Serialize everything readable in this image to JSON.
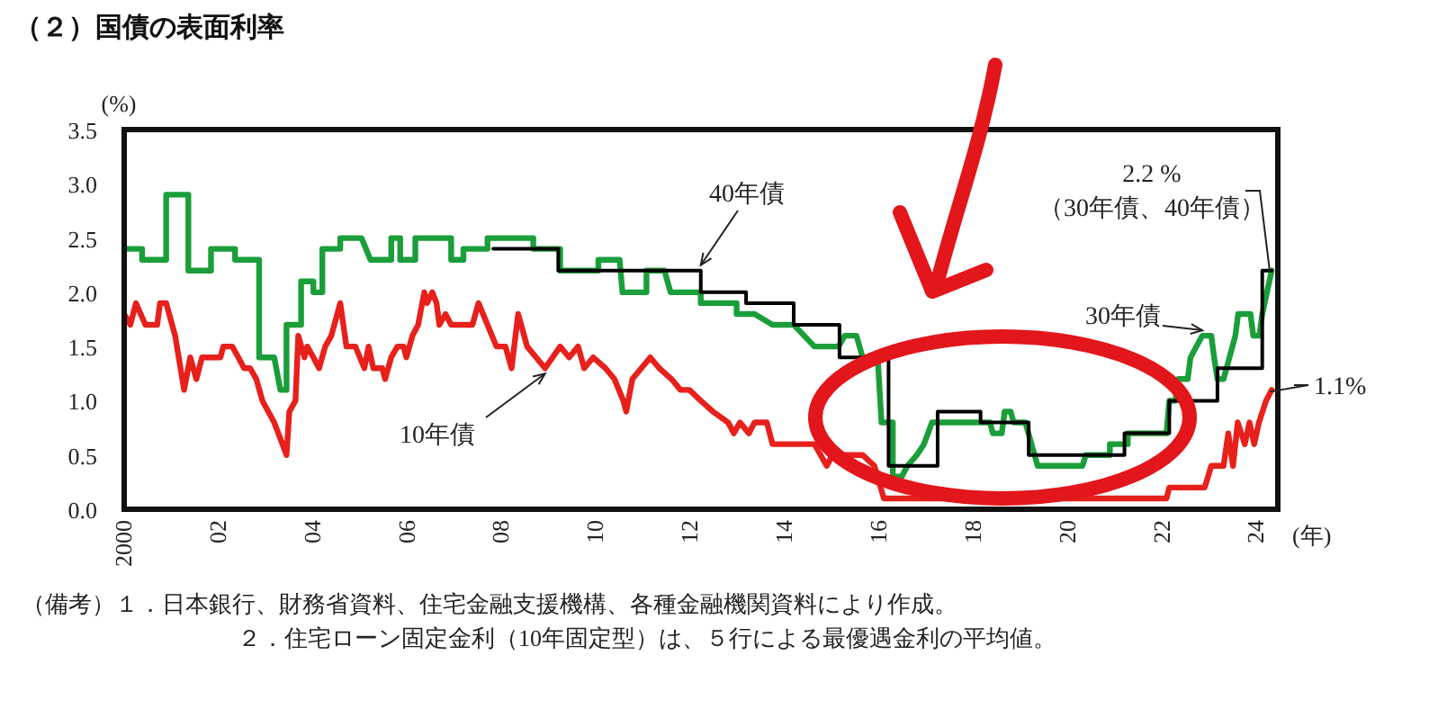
{
  "chart_data": {
    "type": "line",
    "title": "（２）国債の表面利率",
    "ylabel": "(%)",
    "xlabel": "(年)",
    "xlim": [
      2000,
      2024.45
    ],
    "ylim": [
      0,
      3.5
    ],
    "xticks": [
      {
        "value": 2000,
        "label": "2000"
      },
      {
        "value": 2002,
        "label": "02"
      },
      {
        "value": 2004,
        "label": "04"
      },
      {
        "value": 2006,
        "label": "06"
      },
      {
        "value": 2008,
        "label": "08"
      },
      {
        "value": 2010,
        "label": "10"
      },
      {
        "value": 2012,
        "label": "12"
      },
      {
        "value": 2014,
        "label": "14"
      },
      {
        "value": 2016,
        "label": "16"
      },
      {
        "value": 2018,
        "label": "18"
      },
      {
        "value": 2020,
        "label": "20"
      },
      {
        "value": 2022,
        "label": "22"
      },
      {
        "value": 2024,
        "label": "24"
      }
    ],
    "yticks": [
      {
        "value": 0,
        "label": "0.0"
      },
      {
        "value": 0.5,
        "label": "0.5"
      },
      {
        "value": 1,
        "label": "1.0"
      },
      {
        "value": 1.5,
        "label": "1.5"
      },
      {
        "value": 2,
        "label": "2.0"
      },
      {
        "value": 2.5,
        "label": "2.5"
      },
      {
        "value": 3,
        "label": "3.0"
      },
      {
        "value": 3.5,
        "label": "3.5"
      }
    ],
    "grid": false,
    "marker": "none",
    "line_style": "solid",
    "series": [
      {
        "name": "10年債",
        "color": "#e8201c",
        "x": [
          2000,
          2000.13,
          2000.25,
          2000.45,
          2000.7,
          2000.76,
          2000.89,
          2001.08,
          2001.27,
          2001.4,
          2001.53,
          2001.65,
          2002.04,
          2002.1,
          2002.29,
          2002.42,
          2002.54,
          2002.67,
          2002.8,
          2002.93,
          2003.18,
          2003.44,
          2003.5,
          2003.63,
          2003.69,
          2003.82,
          2003.88,
          2004.01,
          2004.13,
          2004.26,
          2004.39,
          2004.58,
          2004.71,
          2004.9,
          2005.09,
          2005.18,
          2005.28,
          2005.47,
          2005.53,
          2005.66,
          2005.79,
          2005.92,
          2005.98,
          2006.11,
          2006.23,
          2006.36,
          2006.42,
          2006.53,
          2006.62,
          2006.68,
          2006.81,
          2006.93,
          2007.38,
          2007.51,
          2007.7,
          2007.89,
          2008.08,
          2008.21,
          2008.35,
          2008.54,
          2008.92,
          2009.24,
          2009.43,
          2009.62,
          2009.75,
          2009.94,
          2010.2,
          2010.39,
          2010.58,
          2010.64,
          2010.77,
          2010.96,
          2011.15,
          2011.34,
          2011.6,
          2011.79,
          2011.98,
          2012.22,
          2012.48,
          2012.8,
          2012.92,
          2013.05,
          2013.24,
          2013.36,
          2013.62,
          2013.74,
          2014.38,
          2014.63,
          2014.89,
          2015.01,
          2015.65,
          2015.9,
          2016.1,
          2022.09,
          2022.15,
          2022.9,
          2023.04,
          2023.3,
          2023.4,
          2023.5,
          2023.6,
          2023.75,
          2023.85,
          2023.95,
          2024.05,
          2024.2,
          2024.32
        ],
        "values": [
          1.8,
          1.7,
          1.9,
          1.7,
          1.7,
          1.9,
          1.9,
          1.6,
          1.1,
          1.4,
          1.2,
          1.4,
          1.4,
          1.5,
          1.5,
          1.4,
          1.3,
          1.3,
          1.2,
          1.0,
          0.8,
          0.5,
          0.9,
          1.0,
          1.6,
          1.4,
          1.5,
          1.4,
          1.3,
          1.5,
          1.6,
          1.9,
          1.5,
          1.5,
          1.3,
          1.5,
          1.3,
          1.3,
          1.2,
          1.4,
          1.5,
          1.5,
          1.4,
          1.6,
          1.7,
          2.0,
          1.9,
          2.0,
          1.9,
          1.7,
          1.8,
          1.7,
          1.7,
          1.9,
          1.7,
          1.5,
          1.5,
          1.3,
          1.8,
          1.5,
          1.3,
          1.5,
          1.4,
          1.5,
          1.3,
          1.4,
          1.3,
          1.2,
          1.0,
          0.9,
          1.2,
          1.3,
          1.4,
          1.3,
          1.2,
          1.1,
          1.1,
          1.0,
          0.9,
          0.8,
          0.7,
          0.8,
          0.7,
          0.8,
          0.8,
          0.6,
          0.6,
          0.6,
          0.4,
          0.5,
          0.5,
          0.4,
          0.1,
          0.1,
          0.2,
          0.2,
          0.4,
          0.4,
          0.7,
          0.4,
          0.8,
          0.6,
          0.8,
          0.6,
          0.8,
          1.0,
          1.1
        ]
      },
      {
        "name": "30年債",
        "color": "#1a9e3a",
        "x": [
          2000,
          2000.38,
          2000.38,
          2000.89,
          2000.89,
          2001.36,
          2001.36,
          2001.84,
          2001.84,
          2002.35,
          2002.35,
          2002.86,
          2002.86,
          2003.18,
          2003.31,
          2003.44,
          2003.44,
          2003.75,
          2003.75,
          2004.01,
          2004.01,
          2004.2,
          2004.2,
          2004.58,
          2004.58,
          2005.03,
          2005.22,
          2005.66,
          2005.66,
          2005.85,
          2005.85,
          2006.17,
          2006.17,
          2006.93,
          2006.93,
          2007.19,
          2007.19,
          2007.7,
          2007.7,
          2008.67,
          2008.67,
          2009.24,
          2009.24,
          2010.05,
          2010.05,
          2010.5,
          2010.56,
          2011.07,
          2011.07,
          2011.45,
          2011.58,
          2012.22,
          2012.22,
          2012.98,
          2012.98,
          2013.36,
          2013.74,
          2014.19,
          2014.63,
          2015.14,
          2015.27,
          2015.52,
          2015.65,
          2015.97,
          2016.05,
          2016.29,
          2016.29,
          2016.48,
          2016.6,
          2016.8,
          2016.95,
          2017.12,
          2018.35,
          2018.41,
          2018.6,
          2018.66,
          2018.79,
          2018.85,
          2019.1,
          2019.36,
          2020.31,
          2020.38,
          2020.89,
          2020.89,
          2021.27,
          2021.27,
          2022.09,
          2022.15,
          2022.28,
          2022.34,
          2022.54,
          2022.6,
          2022.85,
          2023.04,
          2023.1,
          2023.17,
          2023.3,
          2023.55,
          2023.61,
          2023.87,
          2023.93,
          2024.06,
          2024.12,
          2024.32
        ],
        "values": [
          2.4,
          2.4,
          2.3,
          2.3,
          2.9,
          2.9,
          2.2,
          2.2,
          2.4,
          2.4,
          2.3,
          2.3,
          1.4,
          1.4,
          1.1,
          1.1,
          1.7,
          1.7,
          2.1,
          2.1,
          2.0,
          2.0,
          2.4,
          2.4,
          2.5,
          2.5,
          2.3,
          2.3,
          2.5,
          2.5,
          2.3,
          2.3,
          2.5,
          2.5,
          2.3,
          2.3,
          2.4,
          2.4,
          2.5,
          2.5,
          2.4,
          2.4,
          2.2,
          2.2,
          2.3,
          2.3,
          2.0,
          2.0,
          2.2,
          2.2,
          2.0,
          2.0,
          1.9,
          1.9,
          1.8,
          1.8,
          1.7,
          1.7,
          1.5,
          1.5,
          1.6,
          1.6,
          1.4,
          1.4,
          0.8,
          0.8,
          0.3,
          0.3,
          0.4,
          0.5,
          0.6,
          0.8,
          0.8,
          0.7,
          0.7,
          0.9,
          0.9,
          0.8,
          0.8,
          0.4,
          0.4,
          0.5,
          0.5,
          0.6,
          0.6,
          0.7,
          0.7,
          1.0,
          1.0,
          1.2,
          1.2,
          1.4,
          1.6,
          1.6,
          1.4,
          1.2,
          1.2,
          1.6,
          1.8,
          1.8,
          1.6,
          1.6,
          1.8,
          2.2
        ]
      },
      {
        "name": "40年債",
        "color": "#000000",
        "x": [
          2007.82,
          2009.2,
          2009.2,
          2012.22,
          2012.22,
          2013.18,
          2013.18,
          2014.19,
          2014.19,
          2015.16,
          2015.16,
          2016.2,
          2016.2,
          2017.24,
          2017.24,
          2018.15,
          2018.15,
          2019.17,
          2019.17,
          2021.2,
          2021.2,
          2022.15,
          2022.15,
          2023.17,
          2023.17,
          2024.12,
          2024.12,
          2024.32
        ],
        "values": [
          2.4,
          2.4,
          2.2,
          2.2,
          2.0,
          2.0,
          1.9,
          1.9,
          1.7,
          1.7,
          1.4,
          1.4,
          0.4,
          0.4,
          0.9,
          0.9,
          0.8,
          0.8,
          0.5,
          0.5,
          0.7,
          0.7,
          1.0,
          1.0,
          1.3,
          1.3,
          2.2,
          2.2
        ]
      }
    ],
    "annotations": [
      {
        "text": "2.2 %\n（30年債、40年債）",
        "x": 2024.32,
        "y": 2.2
      },
      {
        "text": "1.1%",
        "x": 2024.32,
        "y": 1.1
      },
      "（備考）１．日本銀行、財務省資料、住宅金融支援機構、各種金融機関資料により作成。",
      "２．住宅ローン固定金利（10年固定型）は、５行による最優遇金利の平均値。"
    ]
  }
}
